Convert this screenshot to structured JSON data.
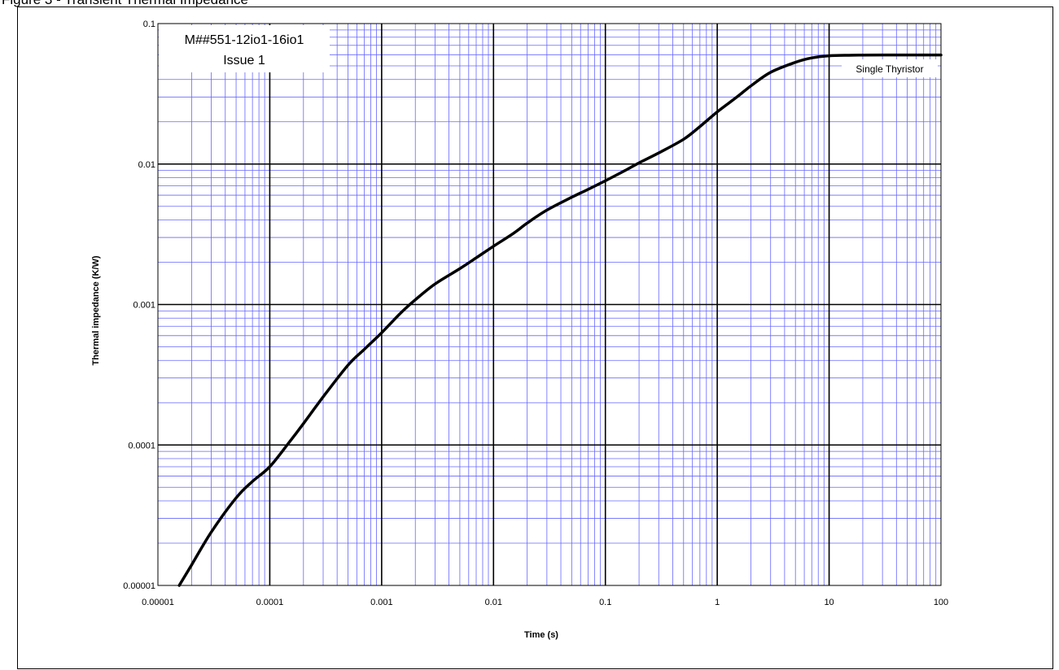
{
  "caption": "Figure 3 - Transient Thermal Impedance",
  "chart_data": {
    "type": "line",
    "title": "",
    "xlabel": "Time (s)",
    "ylabel": "Thermal impedance (K/W)",
    "xscale": "log",
    "yscale": "log",
    "xlim": [
      1e-05,
      100
    ],
    "ylim": [
      1e-05,
      0.1
    ],
    "x_tick_labels": [
      "0.00001",
      "0.0001",
      "0.001",
      "0.01",
      "0.1",
      "1",
      "10",
      "100"
    ],
    "y_tick_labels": [
      "0.00001",
      "0.0001",
      "0.001",
      "0.01",
      "0.1"
    ],
    "grid": true,
    "major_grid_color": "#000000",
    "minor_grid_color": "#6666ff",
    "annotation": [
      "M##551-12io1-16io1",
      "Issue 1"
    ],
    "series": [
      {
        "name": "Single Thyristor",
        "color": "#000000",
        "x": [
          1.55e-05,
          2e-05,
          3e-05,
          5e-05,
          7e-05,
          0.0001,
          0.00015,
          0.0002,
          0.0003,
          0.0005,
          0.0007,
          0.001,
          0.0015,
          0.002,
          0.003,
          0.005,
          0.007,
          0.01,
          0.015,
          0.02,
          0.03,
          0.05,
          0.07,
          0.1,
          0.15,
          0.2,
          0.3,
          0.5,
          0.7,
          1,
          1.5,
          2,
          3,
          5,
          7,
          10,
          15,
          20,
          30,
          50,
          70,
          100
        ],
        "y": [
          1e-05,
          1.4e-05,
          2.4e-05,
          4.2e-05,
          5.5e-05,
          7e-05,
          0.000105,
          0.000142,
          0.00022,
          0.00037,
          0.00048,
          0.00063,
          0.00088,
          0.00108,
          0.0014,
          0.0018,
          0.00215,
          0.0026,
          0.0032,
          0.0038,
          0.0047,
          0.0058,
          0.0066,
          0.0076,
          0.009,
          0.0102,
          0.012,
          0.015,
          0.0185,
          0.0235,
          0.03,
          0.036,
          0.045,
          0.053,
          0.057,
          0.059,
          0.0595,
          0.0597,
          0.0598,
          0.0598,
          0.0598,
          0.0598
        ]
      }
    ]
  }
}
